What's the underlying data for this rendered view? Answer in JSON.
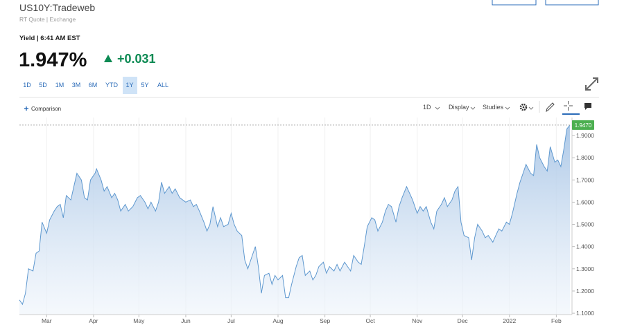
{
  "header": {
    "symbol": "US10Y:Tradeweb",
    "source": "RT Quote | Exchange",
    "label": "Yield | 6:41 AM EST",
    "price": "1.947%",
    "change": "+0.031"
  },
  "ranges": [
    "1D",
    "5D",
    "1M",
    "3M",
    "6M",
    "YTD",
    "1Y",
    "5Y",
    "ALL"
  ],
  "selected_range": "1Y",
  "toolbar": {
    "comparison": "Comparison",
    "interval": "1D",
    "display": "Display",
    "studies": "Studies"
  },
  "chart_data": {
    "type": "area",
    "x": [
      0,
      2,
      4,
      6,
      9,
      11,
      13,
      15,
      18,
      20,
      23,
      25,
      27,
      29,
      31,
      34,
      36,
      38,
      41,
      43,
      45,
      47,
      50,
      51,
      54,
      56,
      58,
      61,
      63,
      65,
      67,
      70,
      72,
      75,
      78,
      80,
      83,
      85,
      87,
      90,
      92,
      94,
      96,
      99,
      101,
      103,
      106,
      108,
      110,
      113,
      115,
      117,
      119,
      122,
      124,
      126,
      128,
      131,
      133,
      135,
      138,
      140,
      142,
      144,
      147,
      149,
      151,
      154,
      156,
      158,
      160,
      162,
      165,
      167,
      169,
      171,
      174,
      176,
      178,
      180,
      183,
      185,
      187,
      189,
      192,
      194,
      196,
      198,
      201,
      203,
      205,
      208,
      210,
      212,
      215,
      217,
      219,
      221,
      224,
      226,
      228,
      230,
      233,
      235,
      237,
      240,
      242,
      244,
      246,
      249,
      251,
      253,
      256,
      258,
      260,
      263,
      265,
      267,
      269,
      272,
      274,
      276,
      279,
      281,
      283,
      286,
      288,
      290,
      292,
      294,
      297,
      299,
      301,
      303,
      306,
      308,
      310,
      313,
      315,
      317,
      319,
      322,
      324,
      326,
      329,
      331,
      333,
      335,
      338,
      340,
      342,
      344,
      347,
      349,
      351,
      354,
      356,
      358,
      360,
      362,
      364
    ],
    "series": [
      {
        "color": "#5e98cf",
        "values": [
          1.16,
          1.14,
          1.19,
          1.3,
          1.29,
          1.37,
          1.38,
          1.51,
          1.46,
          1.52,
          1.56,
          1.58,
          1.59,
          1.53,
          1.63,
          1.61,
          1.67,
          1.73,
          1.7,
          1.62,
          1.61,
          1.7,
          1.73,
          1.75,
          1.7,
          1.65,
          1.67,
          1.62,
          1.64,
          1.61,
          1.56,
          1.59,
          1.56,
          1.58,
          1.62,
          1.63,
          1.6,
          1.57,
          1.6,
          1.56,
          1.6,
          1.69,
          1.64,
          1.67,
          1.64,
          1.66,
          1.62,
          1.61,
          1.6,
          1.61,
          1.58,
          1.59,
          1.56,
          1.51,
          1.47,
          1.5,
          1.58,
          1.49,
          1.53,
          1.49,
          1.5,
          1.55,
          1.5,
          1.47,
          1.45,
          1.34,
          1.3,
          1.36,
          1.4,
          1.31,
          1.19,
          1.27,
          1.28,
          1.23,
          1.27,
          1.25,
          1.27,
          1.17,
          1.17,
          1.23,
          1.31,
          1.35,
          1.36,
          1.27,
          1.29,
          1.25,
          1.27,
          1.31,
          1.33,
          1.28,
          1.31,
          1.29,
          1.32,
          1.29,
          1.33,
          1.31,
          1.29,
          1.36,
          1.33,
          1.32,
          1.4,
          1.49,
          1.53,
          1.52,
          1.47,
          1.51,
          1.56,
          1.59,
          1.58,
          1.51,
          1.58,
          1.62,
          1.67,
          1.64,
          1.61,
          1.55,
          1.58,
          1.56,
          1.58,
          1.51,
          1.48,
          1.56,
          1.59,
          1.62,
          1.58,
          1.61,
          1.65,
          1.67,
          1.51,
          1.45,
          1.44,
          1.34,
          1.44,
          1.5,
          1.47,
          1.44,
          1.45,
          1.42,
          1.45,
          1.48,
          1.47,
          1.51,
          1.5,
          1.55,
          1.64,
          1.69,
          1.73,
          1.77,
          1.73,
          1.72,
          1.86,
          1.8,
          1.76,
          1.74,
          1.85,
          1.78,
          1.79,
          1.76,
          1.84,
          1.93,
          1.947
        ]
      }
    ],
    "current": {
      "value": 1.947,
      "label": "1.9470",
      "color": "#4caf50"
    },
    "xlim": [
      0,
      364
    ],
    "xticks": [
      {
        "value": 18,
        "label": "Mar"
      },
      {
        "value": 49,
        "label": "Apr"
      },
      {
        "value": 79,
        "label": "May"
      },
      {
        "value": 110,
        "label": "Jun"
      },
      {
        "value": 140,
        "label": "Jul"
      },
      {
        "value": 171,
        "label": "Aug"
      },
      {
        "value": 202,
        "label": "Sep"
      },
      {
        "value": 232,
        "label": "Oct"
      },
      {
        "value": 263,
        "label": "Nov"
      },
      {
        "value": 293,
        "label": "Dec"
      },
      {
        "value": 324,
        "label": "2022"
      },
      {
        "value": 355,
        "label": "Feb"
      }
    ],
    "ylim": [
      1.094,
      1.981
    ],
    "yticks": [
      {
        "value": 1.1,
        "label": "1.1000"
      },
      {
        "value": 1.2,
        "label": "1.2000"
      },
      {
        "value": 1.3,
        "label": "1.3000"
      },
      {
        "value": 1.4,
        "label": "1.4000"
      },
      {
        "value": 1.5,
        "label": "1.5000"
      },
      {
        "value": 1.6,
        "label": "1.6000"
      },
      {
        "value": 1.7,
        "label": "1.7000"
      },
      {
        "value": 1.8,
        "label": "1.8000"
      },
      {
        "value": 1.9,
        "label": "1.9000"
      }
    ],
    "grid": true
  }
}
